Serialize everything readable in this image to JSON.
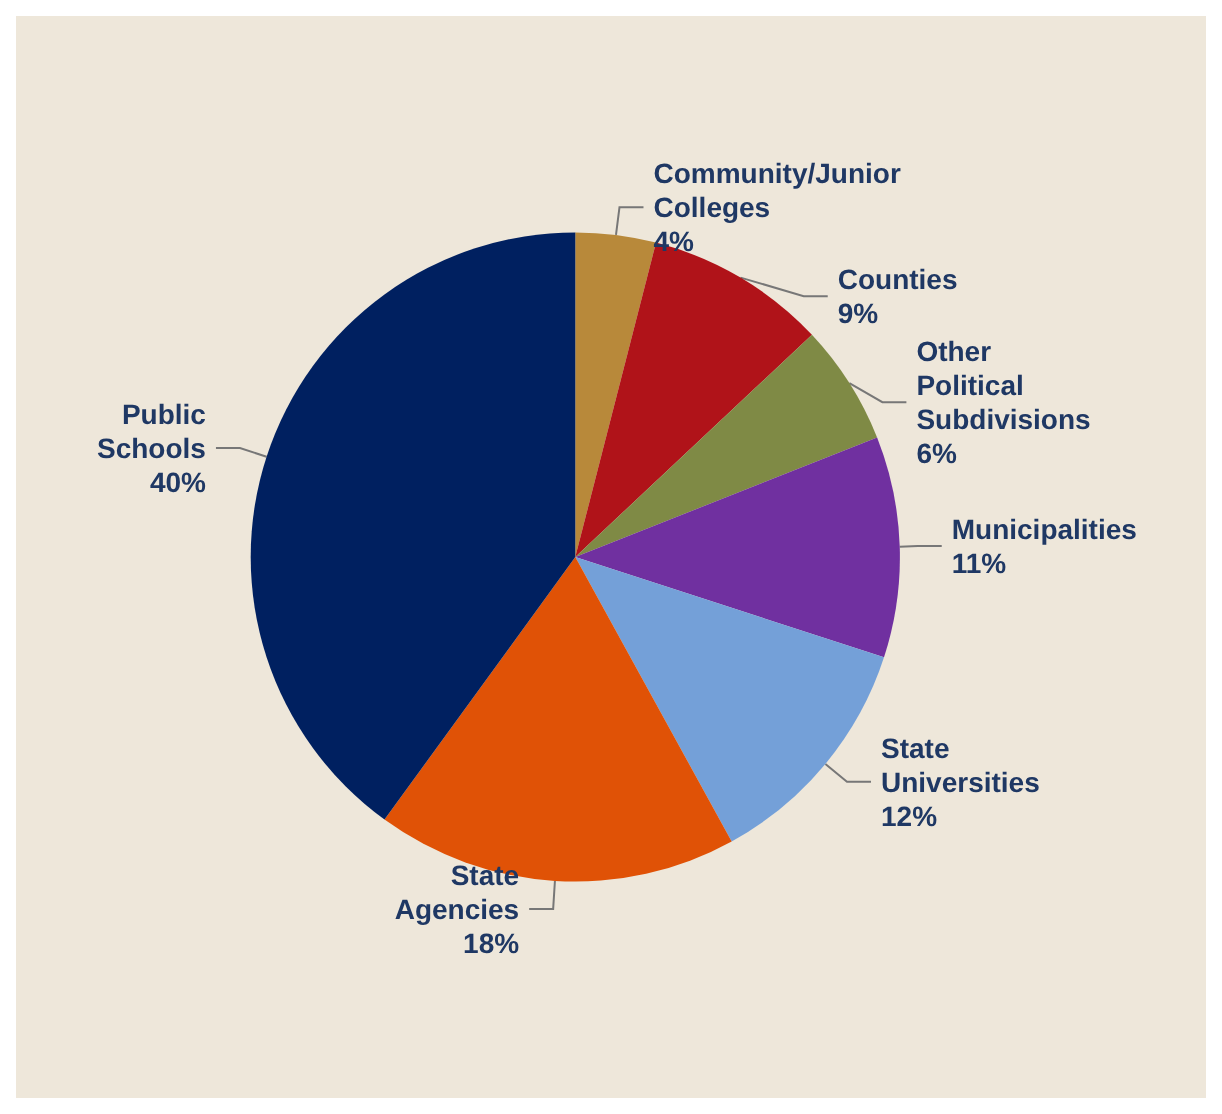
{
  "chart_data": {
    "type": "pie",
    "categories": [
      "Community/Junior Colleges",
      "Counties",
      "Other Political Subdivisions",
      "Municipalities",
      "State Universities",
      "State Agencies",
      "Public Schools"
    ],
    "values": [
      4,
      9,
      6,
      11,
      12,
      18,
      40
    ],
    "value_labels": [
      "4%",
      "9%",
      "6%",
      "11%",
      "12%",
      "18%",
      "40%"
    ],
    "colors": [
      "#b8893a",
      "#b01319",
      "#7f8a45",
      "#7030a0",
      "#74a0d8",
      "#e05206",
      "#002060"
    ],
    "legend": false
  }
}
